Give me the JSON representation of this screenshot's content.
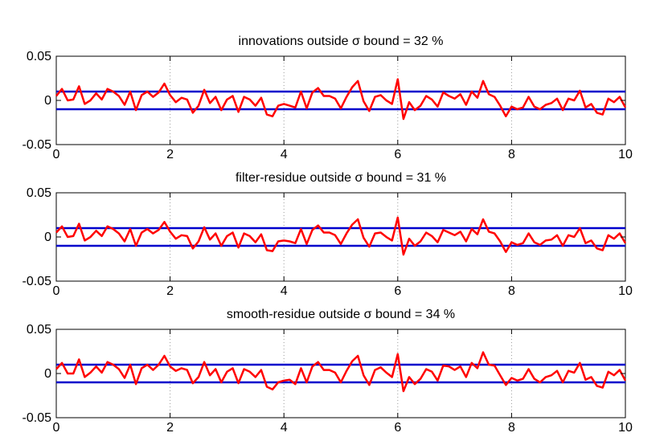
{
  "chart_data": [
    {
      "type": "line",
      "title": "innovations outside σ bound = 32 %",
      "xlim": [
        0,
        10
      ],
      "ylim": [
        -0.05,
        0.05
      ],
      "xticks": [
        "0",
        "2",
        "4",
        "6",
        "8",
        "10"
      ],
      "yticks": [
        "0.05",
        "0",
        "-0.05"
      ],
      "grid": "vertical dotted at x ticks",
      "bound_color": "#0000cc",
      "series_color": "#ff0000",
      "bounds": [
        0.01,
        -0.01
      ],
      "x": [
        0.0,
        0.1,
        0.2,
        0.3,
        0.4,
        0.5,
        0.6,
        0.7,
        0.8,
        0.9,
        1.0,
        1.1,
        1.2,
        1.3,
        1.4,
        1.5,
        1.6,
        1.7,
        1.8,
        1.9,
        2.0,
        2.1,
        2.2,
        2.3,
        2.4,
        2.5,
        2.6,
        2.7,
        2.8,
        2.9,
        3.0,
        3.1,
        3.2,
        3.3,
        3.4,
        3.5,
        3.6,
        3.7,
        3.8,
        3.9,
        4.0,
        4.1,
        4.2,
        4.3,
        4.4,
        4.5,
        4.6,
        4.7,
        4.8,
        4.9,
        5.0,
        5.1,
        5.2,
        5.3,
        5.4,
        5.5,
        5.6,
        5.7,
        5.8,
        5.9,
        6.0,
        6.1,
        6.2,
        6.3,
        6.4,
        6.5,
        6.6,
        6.7,
        6.8,
        6.9,
        7.0,
        7.1,
        7.2,
        7.3,
        7.4,
        7.5,
        7.6,
        7.7,
        7.8,
        7.9,
        8.0,
        8.1,
        8.2,
        8.3,
        8.4,
        8.5,
        8.6,
        8.7,
        8.8,
        8.9,
        9.0,
        9.1,
        9.2,
        9.3,
        9.4,
        9.5,
        9.6,
        9.7,
        9.8,
        9.9,
        10.0
      ],
      "y": [
        0.005,
        0.013,
        0.0,
        0.001,
        0.016,
        -0.004,
        0.0,
        0.008,
        0.001,
        0.013,
        0.01,
        0.005,
        -0.005,
        0.01,
        -0.011,
        0.006,
        0.01,
        0.004,
        0.009,
        0.019,
        0.006,
        -0.002,
        0.003,
        0.001,
        -0.014,
        -0.006,
        0.012,
        -0.003,
        0.004,
        -0.011,
        0.001,
        0.005,
        -0.013,
        0.004,
        0.001,
        -0.006,
        0.003,
        -0.016,
        -0.018,
        -0.006,
        -0.004,
        -0.006,
        -0.008,
        0.01,
        -0.009,
        0.009,
        0.014,
        0.005,
        0.005,
        0.002,
        -0.009,
        0.004,
        0.015,
        0.022,
        -0.001,
        -0.012,
        0.004,
        0.006,
        0.0,
        -0.004,
        0.024,
        -0.021,
        -0.002,
        -0.011,
        -0.006,
        0.005,
        0.001,
        -0.007,
        0.009,
        0.005,
        0.002,
        0.007,
        -0.005,
        0.01,
        0.003,
        0.022,
        0.007,
        0.004,
        -0.006,
        -0.018,
        -0.007,
        -0.01,
        -0.008,
        0.004,
        -0.007,
        -0.01,
        -0.005,
        -0.003,
        0.002,
        -0.011,
        0.002,
        0.0,
        0.011,
        -0.008,
        -0.004,
        -0.014,
        -0.016,
        0.002,
        -0.002,
        0.004,
        -0.008
      ]
    },
    {
      "type": "line",
      "title": "filter-residue outside σ bound = 31 %",
      "xlim": [
        0,
        10
      ],
      "ylim": [
        -0.05,
        0.05
      ],
      "xticks": [
        "0",
        "2",
        "4",
        "6",
        "8",
        "10"
      ],
      "yticks": [
        "0.05",
        "0",
        "-0.05"
      ],
      "grid": "vertical dotted at x ticks",
      "bound_color": "#0000cc",
      "series_color": "#ff0000",
      "bounds": [
        0.01,
        -0.01
      ],
      "x": [
        0.0,
        0.1,
        0.2,
        0.3,
        0.4,
        0.5,
        0.6,
        0.7,
        0.8,
        0.9,
        1.0,
        1.1,
        1.2,
        1.3,
        1.4,
        1.5,
        1.6,
        1.7,
        1.8,
        1.9,
        2.0,
        2.1,
        2.2,
        2.3,
        2.4,
        2.5,
        2.6,
        2.7,
        2.8,
        2.9,
        3.0,
        3.1,
        3.2,
        3.3,
        3.4,
        3.5,
        3.6,
        3.7,
        3.8,
        3.9,
        4.0,
        4.1,
        4.2,
        4.3,
        4.4,
        4.5,
        4.6,
        4.7,
        4.8,
        4.9,
        5.0,
        5.1,
        5.2,
        5.3,
        5.4,
        5.5,
        5.6,
        5.7,
        5.8,
        5.9,
        6.0,
        6.1,
        6.2,
        6.3,
        6.4,
        6.5,
        6.6,
        6.7,
        6.8,
        6.9,
        7.0,
        7.1,
        7.2,
        7.3,
        7.4,
        7.5,
        7.6,
        7.7,
        7.8,
        7.9,
        8.0,
        8.1,
        8.2,
        8.3,
        8.4,
        8.5,
        8.6,
        8.7,
        8.8,
        8.9,
        9.0,
        9.1,
        9.2,
        9.3,
        9.4,
        9.5,
        9.6,
        9.7,
        9.8,
        9.9,
        10.0
      ],
      "y": [
        0.005,
        0.012,
        0.0,
        0.001,
        0.015,
        -0.004,
        0.0,
        0.007,
        0.001,
        0.012,
        0.009,
        0.004,
        -0.005,
        0.009,
        -0.01,
        0.005,
        0.009,
        0.004,
        0.008,
        0.017,
        0.006,
        -0.002,
        0.002,
        0.001,
        -0.013,
        -0.005,
        0.011,
        -0.003,
        0.004,
        -0.01,
        0.001,
        0.005,
        -0.012,
        0.004,
        0.001,
        -0.006,
        0.003,
        -0.015,
        -0.016,
        -0.005,
        -0.004,
        -0.005,
        -0.007,
        0.009,
        -0.008,
        0.008,
        0.013,
        0.005,
        0.005,
        0.002,
        -0.008,
        0.004,
        0.014,
        0.02,
        -0.001,
        -0.011,
        0.004,
        0.005,
        0.0,
        -0.004,
        0.022,
        -0.02,
        -0.002,
        -0.01,
        -0.005,
        0.005,
        0.001,
        -0.006,
        0.008,
        0.005,
        0.002,
        0.006,
        -0.005,
        0.009,
        0.003,
        0.02,
        0.006,
        0.004,
        -0.005,
        -0.017,
        -0.006,
        -0.009,
        -0.007,
        0.004,
        -0.006,
        -0.009,
        -0.004,
        -0.003,
        0.002,
        -0.01,
        0.002,
        0.0,
        0.01,
        -0.007,
        -0.004,
        -0.013,
        -0.015,
        0.002,
        -0.002,
        0.004,
        -0.007
      ]
    },
    {
      "type": "line",
      "title": "smooth-residue outside σ bound = 34 %",
      "xlim": [
        0,
        10
      ],
      "ylim": [
        -0.05,
        0.05
      ],
      "xticks": [
        "0",
        "2",
        "4",
        "6",
        "8",
        "10"
      ],
      "yticks": [
        "0.05",
        "0",
        "-0.05"
      ],
      "grid": "vertical dotted at x ticks",
      "bound_color": "#0000cc",
      "series_color": "#ff0000",
      "bounds": [
        0.01,
        -0.01
      ],
      "x": [
        0.0,
        0.1,
        0.2,
        0.3,
        0.4,
        0.5,
        0.6,
        0.7,
        0.8,
        0.9,
        1.0,
        1.1,
        1.2,
        1.3,
        1.4,
        1.5,
        1.6,
        1.7,
        1.8,
        1.9,
        2.0,
        2.1,
        2.2,
        2.3,
        2.4,
        2.5,
        2.6,
        2.7,
        2.8,
        2.9,
        3.0,
        3.1,
        3.2,
        3.3,
        3.4,
        3.5,
        3.6,
        3.7,
        3.8,
        3.9,
        4.0,
        4.1,
        4.2,
        4.3,
        4.4,
        4.5,
        4.6,
        4.7,
        4.8,
        4.9,
        5.0,
        5.1,
        5.2,
        5.3,
        5.4,
        5.5,
        5.6,
        5.7,
        5.8,
        5.9,
        6.0,
        6.1,
        6.2,
        6.3,
        6.4,
        6.5,
        6.6,
        6.7,
        6.8,
        6.9,
        7.0,
        7.1,
        7.2,
        7.3,
        7.4,
        7.5,
        7.6,
        7.7,
        7.8,
        7.9,
        8.0,
        8.1,
        8.2,
        8.3,
        8.4,
        8.5,
        8.6,
        8.7,
        8.8,
        8.9,
        9.0,
        9.1,
        9.2,
        9.3,
        9.4,
        9.5,
        9.6,
        9.7,
        9.8,
        9.9,
        10.0
      ],
      "y": [
        0.005,
        0.012,
        0.0,
        0.0,
        0.016,
        -0.004,
        0.001,
        0.008,
        0.001,
        0.013,
        0.01,
        0.005,
        -0.005,
        0.01,
        -0.012,
        0.006,
        0.01,
        0.004,
        0.01,
        0.02,
        0.008,
        0.003,
        0.006,
        0.004,
        -0.011,
        -0.004,
        0.013,
        -0.002,
        0.005,
        -0.01,
        0.002,
        0.006,
        -0.011,
        0.005,
        0.002,
        -0.004,
        0.004,
        -0.015,
        -0.018,
        -0.01,
        -0.008,
        -0.007,
        -0.012,
        0.006,
        -0.01,
        0.008,
        0.013,
        0.004,
        0.004,
        0.001,
        -0.01,
        0.003,
        0.014,
        0.02,
        -0.002,
        -0.013,
        0.004,
        0.007,
        0.001,
        -0.004,
        0.022,
        -0.02,
        -0.004,
        -0.012,
        -0.006,
        0.005,
        0.002,
        -0.008,
        0.009,
        0.008,
        0.004,
        0.008,
        -0.004,
        0.012,
        0.006,
        0.024,
        0.01,
        0.009,
        -0.002,
        -0.013,
        -0.005,
        -0.008,
        -0.006,
        0.005,
        -0.006,
        -0.01,
        -0.004,
        -0.002,
        0.003,
        -0.01,
        0.003,
        0.001,
        0.012,
        -0.007,
        -0.004,
        -0.014,
        -0.016,
        0.002,
        -0.002,
        0.004,
        -0.008
      ]
    }
  ]
}
